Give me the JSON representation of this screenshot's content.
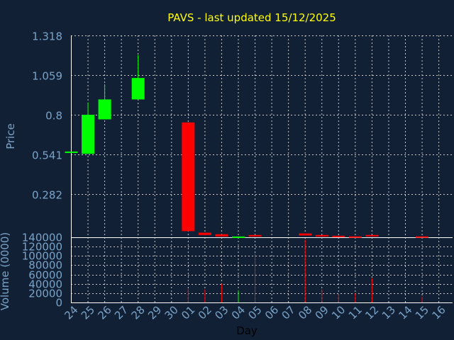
{
  "chart_data": {
    "type": "candlestick",
    "title": "PAVS - last updated 15/12/2025",
    "xlabel": "Day",
    "price_panel": {
      "ylabel": "Price",
      "ylim": [
        0,
        1.318
      ],
      "yticks": [
        0.282,
        0.541,
        0.8,
        1.059,
        1.318
      ],
      "ytick_labels": [
        "0.282",
        "0.541",
        "0.8",
        "1.059",
        "1.318"
      ]
    },
    "volume_panel": {
      "ylabel": "Volume (0000)",
      "ylim": [
        0,
        140000
      ],
      "yticks": [
        0,
        20000,
        40000,
        60000,
        80000,
        100000,
        120000,
        140000
      ],
      "ytick_labels": [
        "0",
        "20000",
        "40000",
        "60000",
        "80000",
        "100000",
        "120000",
        "140000"
      ]
    },
    "x_labels": [
      "24",
      "25",
      "26",
      "27",
      "28",
      "29",
      "30",
      "01",
      "02",
      "03",
      "04",
      "05",
      "06",
      "07",
      "08",
      "09",
      "10",
      "11",
      "12",
      "13",
      "14",
      "15",
      "16"
    ],
    "candles": [
      {
        "day": "24",
        "open": 0.56,
        "close": 0.56,
        "high": 0.56,
        "low": 0.56,
        "volume": 0
      },
      {
        "day": "25",
        "open": 0.545,
        "close": 0.8,
        "high": 0.88,
        "low": 0.545,
        "volume": 0
      },
      {
        "day": "26",
        "open": 0.77,
        "close": 0.9,
        "high": 1.0,
        "low": 0.77,
        "volume": 0
      },
      {
        "day": "28",
        "open": 0.9,
        "close": 1.04,
        "high": 1.19,
        "low": 0.9,
        "volume": 0
      },
      {
        "day": "01",
        "open": 0.75,
        "close": 0.04,
        "high": 0.75,
        "low": 0.04,
        "volume": 30000
      },
      {
        "day": "02",
        "open": 0.03,
        "close": 0.015,
        "high": 0.03,
        "low": 0.015,
        "volume": 28000
      },
      {
        "day": "03",
        "open": 0.02,
        "close": 0.005,
        "high": 0.02,
        "low": 0.005,
        "volume": 40000
      },
      {
        "day": "04",
        "open": 0.0,
        "close": 0.005,
        "high": 0.005,
        "low": 0.0,
        "volume": 26000
      },
      {
        "day": "05",
        "open": 0.015,
        "close": 0.005,
        "high": 0.015,
        "low": 0.005,
        "volume": 105000
      },
      {
        "day": "08",
        "open": 0.025,
        "close": 0.012,
        "high": 0.025,
        "low": 0.012,
        "volume": 135000
      },
      {
        "day": "09",
        "open": 0.015,
        "close": 0.005,
        "high": 0.015,
        "low": 0.005,
        "volume": 28000
      },
      {
        "day": "10",
        "open": 0.01,
        "close": 0.003,
        "high": 0.01,
        "low": 0.003,
        "volume": 18000
      },
      {
        "day": "11",
        "open": 0.006,
        "close": 0.001,
        "high": 0.006,
        "low": 0.001,
        "volume": 20000
      },
      {
        "day": "12",
        "open": 0.015,
        "close": 0.006,
        "high": 0.015,
        "low": 0.006,
        "volume": 52000
      },
      {
        "day": "15",
        "open": 0.006,
        "close": 0.001,
        "high": 0.006,
        "low": 0.001,
        "volume": 12000
      }
    ]
  },
  "colors": {
    "background": "#112035",
    "title": "#ffff00",
    "axis_text": "#7aa3c7",
    "x_label_text": "#000000",
    "grid": "#c8c8c8",
    "axis_line": "#ffffff",
    "up": "#00ff00",
    "down": "#ff0000"
  }
}
